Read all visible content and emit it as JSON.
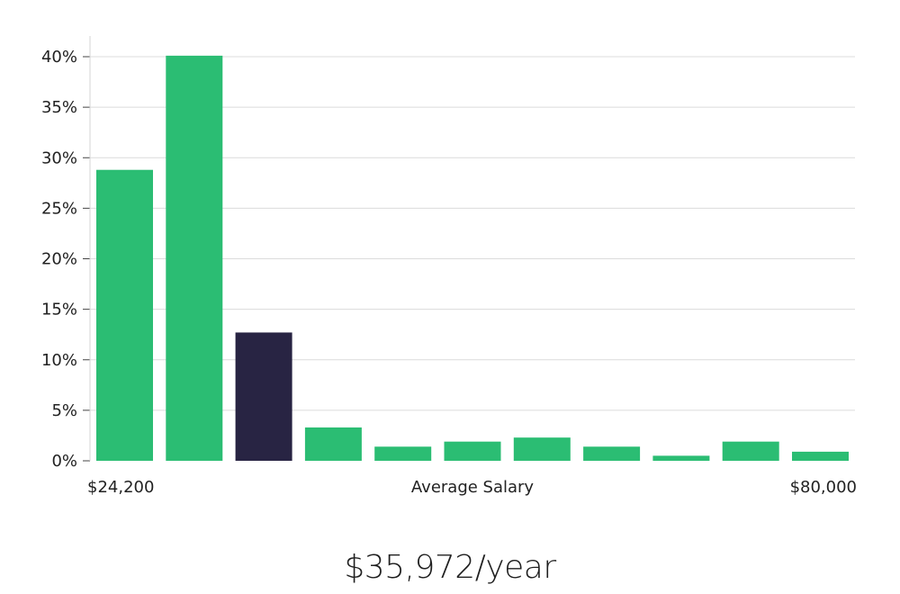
{
  "chart_data": {
    "type": "bar",
    "title": "",
    "xlabel": "Average Salary",
    "ylabel": "",
    "x_range_labels": {
      "min": "$24,200",
      "max": "$80,000"
    },
    "ylim": [
      0,
      42
    ],
    "yticks": [
      0,
      5,
      10,
      15,
      20,
      25,
      30,
      35,
      40
    ],
    "ytick_suffix": "%",
    "grid": true,
    "legend": "none",
    "values": [
      28.8,
      40.1,
      12.7,
      3.3,
      1.4,
      1.9,
      2.3,
      1.4,
      0.5,
      1.9,
      0.9
    ],
    "highlight_index": 2,
    "colors": {
      "bar": "#2bbd73",
      "highlight": "#282443",
      "grid": "#dcdcdc",
      "axis": "#d6d6d6"
    }
  },
  "headline": "$35,972/year"
}
